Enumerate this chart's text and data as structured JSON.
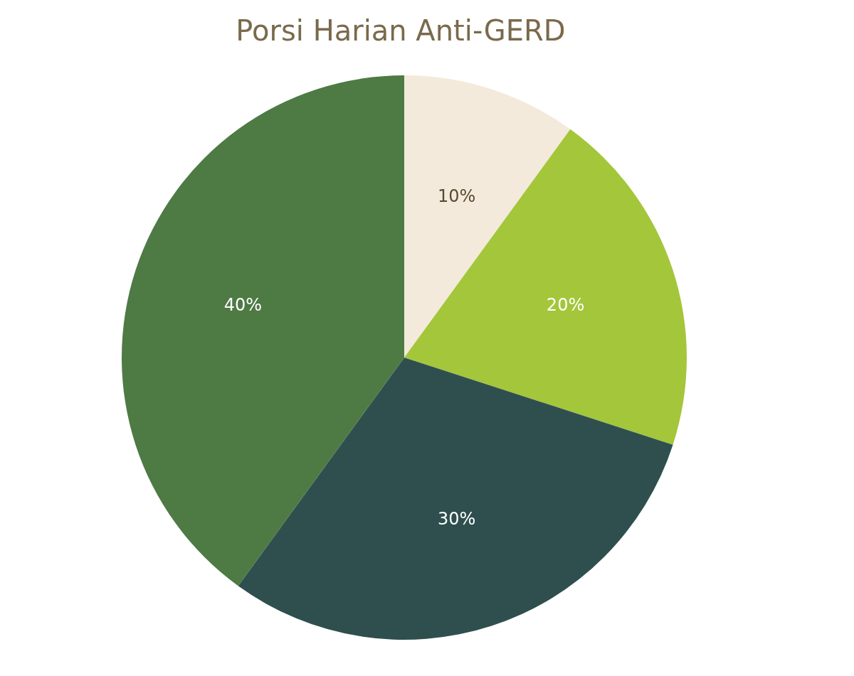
{
  "chart_data": {
    "type": "pie",
    "title": "Porsi Harian Anti-GERD",
    "categories": [
      null,
      null,
      null,
      null
    ],
    "values": [
      10,
      20,
      30,
      40
    ],
    "colors": [
      "#f3eadc",
      "#a4c63a",
      "#2f4f4f",
      "#4e7a44"
    ],
    "value_labels": [
      "10%",
      "20%",
      "30%",
      "40%"
    ]
  }
}
